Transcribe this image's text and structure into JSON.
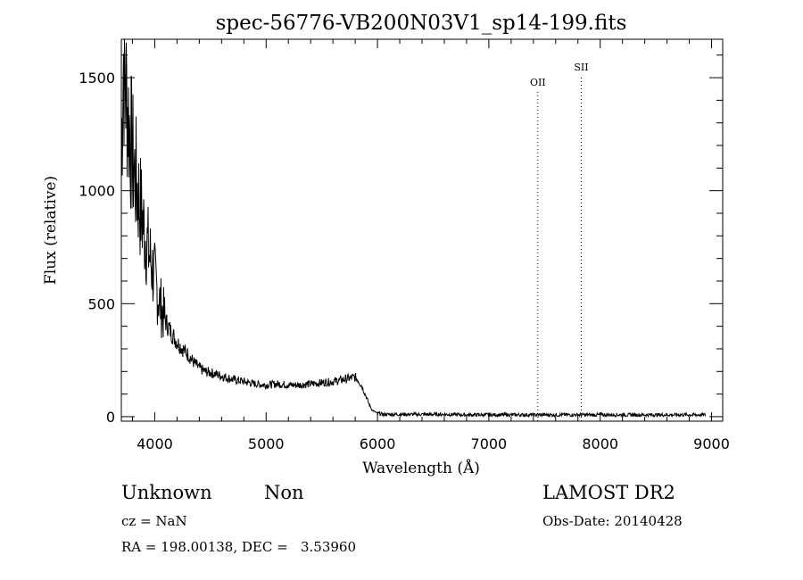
{
  "chart_data": {
    "type": "line",
    "title": "spec-56776-VB200N03V1_sp14-199.fits",
    "xlabel": "Wavelength (Å)",
    "ylabel": "Flux (relative)",
    "xlim": [
      3700,
      9100
    ],
    "ylim": [
      -20,
      1670
    ],
    "x_ticks": [
      4000,
      5000,
      6000,
      7000,
      8000,
      9000
    ],
    "y_ticks": [
      0,
      500,
      1000,
      1500
    ],
    "grid": false,
    "series": [
      {
        "x": [
          3700,
          3720,
          3740,
          3760,
          3780,
          3800,
          3820,
          3840,
          3860,
          3880,
          3900,
          3920,
          3940,
          3960,
          3980,
          4000,
          4020,
          4040,
          4060,
          4080,
          4100,
          4150,
          4200,
          4250,
          4300,
          4350,
          4400,
          4450,
          4500,
          4600,
          4700,
          4800,
          4900,
          5000,
          5100,
          5200,
          5300,
          5400,
          5500,
          5600,
          5700,
          5750,
          5800,
          5830,
          5860,
          5890,
          5920,
          5950,
          6000,
          6050,
          6100,
          6200,
          6400,
          6600,
          6800,
          7000,
          7200,
          7400,
          7600,
          7800,
          8000,
          8200,
          8400,
          8600,
          8800,
          8950
        ],
        "y": [
          1200,
          1600,
          1450,
          1350,
          1250,
          1150,
          1080,
          1020,
          960,
          900,
          840,
          790,
          740,
          700,
          650,
          610,
          560,
          520,
          480,
          450,
          420,
          370,
          330,
          300,
          275,
          240,
          215,
          200,
          195,
          180,
          165,
          155,
          145,
          140,
          145,
          140,
          140,
          145,
          150,
          155,
          165,
          170,
          175,
          160,
          135,
          100,
          60,
          30,
          15,
          10,
          10,
          10,
          10,
          10,
          8,
          8,
          8,
          8,
          8,
          8,
          8,
          8,
          8,
          8,
          8,
          8
        ]
      }
    ],
    "lines": [
      {
        "label": "OII",
        "x": 7440
      },
      {
        "label": "SII",
        "x": 7830
      }
    ]
  },
  "info": {
    "object_class": "Unknown",
    "object_subclass": "Non",
    "survey": "LAMOST DR2",
    "cz": "cz = NaN",
    "obs_date": "Obs-Date: 20140428",
    "coords": "RA = 198.00138, DEC =   3.53960"
  }
}
